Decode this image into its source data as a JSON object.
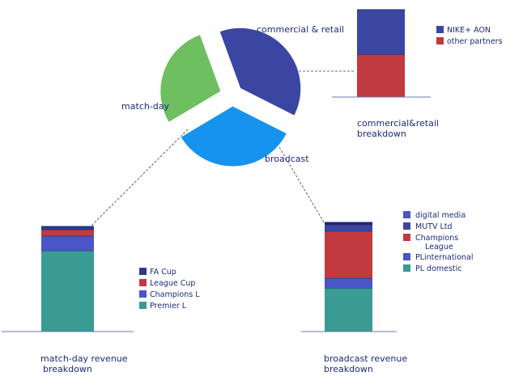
{
  "chart_data": [
    {
      "type": "pie",
      "slices": [
        {
          "name": "commercial & retail",
          "value": 38,
          "color": "#3b46a3"
        },
        {
          "name": "broadcast",
          "value": 34,
          "color": "#1693ee"
        },
        {
          "name": "match-day",
          "value": 28,
          "color": "#6dbf5f"
        }
      ]
    },
    {
      "type": "bar",
      "stacked": true,
      "caption": [
        "commercial&retail",
        "breakdown"
      ],
      "ylim": [
        0,
        100
      ],
      "series": [
        {
          "name": "other partners",
          "value": 49,
          "color": "#c03a3f"
        },
        {
          "name": "NIKE+ AON",
          "value": 51,
          "color": "#3b46a3"
        }
      ],
      "legend": [
        "NIKE+ AON",
        "other partners"
      ]
    },
    {
      "type": "bar",
      "stacked": true,
      "caption": [
        "match-day revenue",
        "breakdown"
      ],
      "ylim": [
        0,
        100
      ],
      "series": [
        {
          "name": "Premier L",
          "value": 77,
          "color": "#3a9b93"
        },
        {
          "name": "Champions L",
          "value": 14,
          "color": "#4a55c8"
        },
        {
          "name": "League Cup",
          "value": 6,
          "color": "#c03a3f"
        },
        {
          "name": "FA Cup",
          "value": 3,
          "color": "#2d3a8c"
        }
      ],
      "legend": [
        "FA Cup",
        "League Cup",
        "Champions L",
        "Premier L"
      ]
    },
    {
      "type": "bar",
      "stacked": true,
      "caption": [
        "broadcast revenue",
        "breakdown"
      ],
      "ylim": [
        0,
        100
      ],
      "series": [
        {
          "name": "PL domestic",
          "value": 40,
          "color": "#3a9b93"
        },
        {
          "name": "PLinternational",
          "value": 9,
          "color": "#4a55c8"
        },
        {
          "name": "Champions League",
          "value": 43,
          "color": "#c03a3f"
        },
        {
          "name": "MUTV Ltd",
          "value": 6,
          "color": "#3b46a3"
        },
        {
          "name": "digital media",
          "value": 2,
          "color": "#1c2870"
        }
      ],
      "legend": [
        {
          "text": "digital media",
          "color": "#4a55c8"
        },
        {
          "text": "MUTV Ltd",
          "color": "#3b46a3"
        },
        {
          "text": "Champions",
          "text2": "League",
          "color": "#c03a3f"
        },
        {
          "text": "PLinternational",
          "color": "#4a55c8"
        },
        {
          "text": "PL domestic",
          "color": "#3a9b93"
        }
      ]
    }
  ]
}
